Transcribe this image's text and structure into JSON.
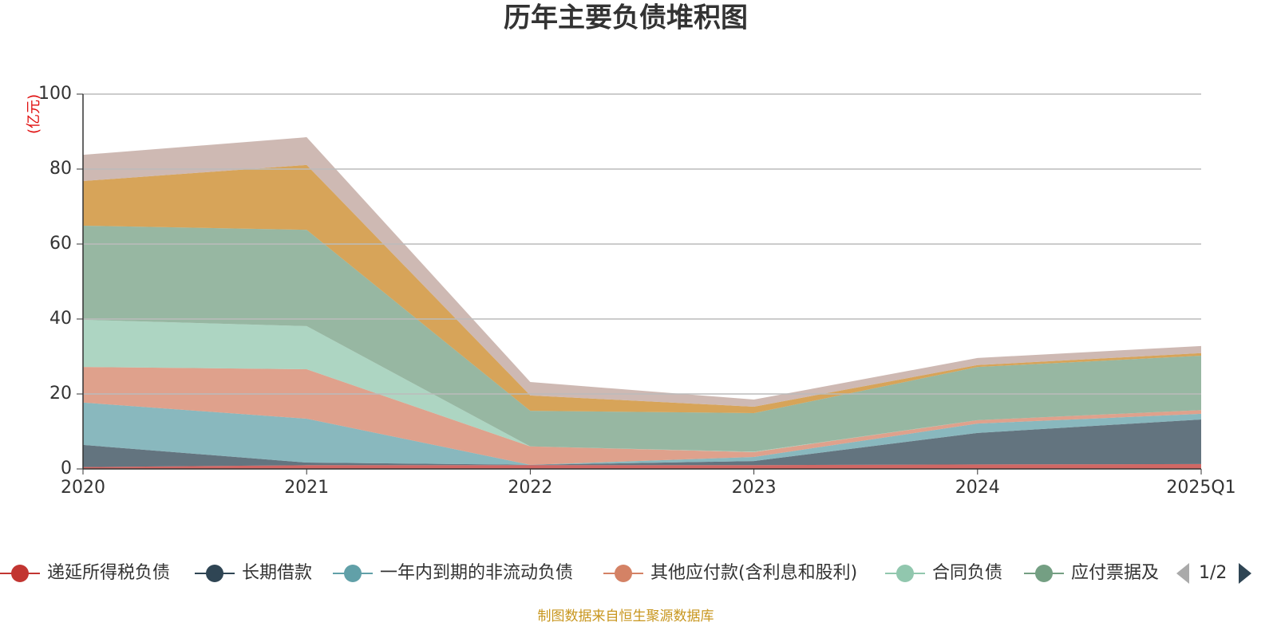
{
  "chart_data": {
    "type": "stacked_area",
    "title": "历年主要负债堆积图",
    "y_label": "(亿元)",
    "categories": [
      "2020",
      "2021",
      "2022",
      "2023",
      "2024",
      "2025Q1"
    ],
    "ylim": [
      0,
      100
    ],
    "yticks": [
      0,
      20,
      40,
      60,
      80,
      100
    ],
    "grid": true,
    "series": [
      {
        "name": "递延所得税负债",
        "color": "#c23531",
        "values": [
          0.5,
          1.0,
          1.0,
          1.0,
          1.2,
          1.3
        ]
      },
      {
        "name": "长期借款",
        "color": "#2f4554",
        "values": [
          5.9,
          0.7,
          0.1,
          1.1,
          8.4,
          11.9
        ]
      },
      {
        "name": "一年内到期的非流动负债",
        "color": "#61a0a8",
        "values": [
          11.3,
          11.7,
          0,
          1.1,
          2.5,
          1.5
        ]
      },
      {
        "name": "其他应付款(含利息和股利)",
        "color": "#d48265",
        "values": [
          9.5,
          13.2,
          4.9,
          1.3,
          0.9,
          1.0
        ]
      },
      {
        "name": "合同负债",
        "color": "#91c7ae",
        "values": [
          12.6,
          11.5,
          0,
          0.1,
          0,
          0
        ]
      },
      {
        "name": "应付票据及",
        "color": "#749f83",
        "values": [
          25.1,
          25.7,
          9.5,
          10.3,
          14.2,
          14.5
        ]
      },
      {
        "color": "#ca8622",
        "values": [
          11.9,
          17.3,
          4.1,
          1.7,
          0.5,
          0.7
        ]
      },
      {
        "color": "#bda29a",
        "values": [
          7.0,
          7.4,
          3.6,
          1.9,
          1.9,
          1.9
        ]
      }
    ],
    "legend_page": "1/2",
    "source": "制图数据来自恒生聚源数据库"
  }
}
